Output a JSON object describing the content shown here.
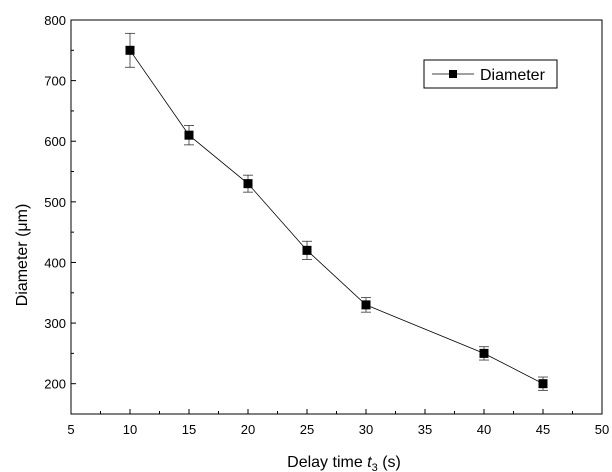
{
  "chart_data": {
    "type": "line",
    "title": "",
    "xlabel": {
      "prefix": "Delay time ",
      "var": "t",
      "sub": "3",
      "suffix": " (s)"
    },
    "ylabel": "Diameter (μm)",
    "xlim": [
      5,
      50
    ],
    "ylim": [
      150,
      800
    ],
    "xticks": [
      "5",
      "10",
      "15",
      "20",
      "25",
      "30",
      "35",
      "40",
      "45",
      "50"
    ],
    "yticks": [
      "200",
      "300",
      "400",
      "500",
      "600",
      "700",
      "800"
    ],
    "grid": false,
    "legend": {
      "position": "top-right",
      "entries": [
        "Diameter"
      ]
    },
    "series": [
      {
        "name": "Diameter",
        "marker": "filled-square",
        "color": "#000000",
        "x": [
          10,
          15,
          20,
          25,
          30,
          40,
          45
        ],
        "y": [
          750,
          610,
          530,
          420,
          330,
          250,
          200
        ],
        "error": [
          28,
          16,
          14,
          15,
          12,
          11,
          11
        ]
      }
    ]
  }
}
